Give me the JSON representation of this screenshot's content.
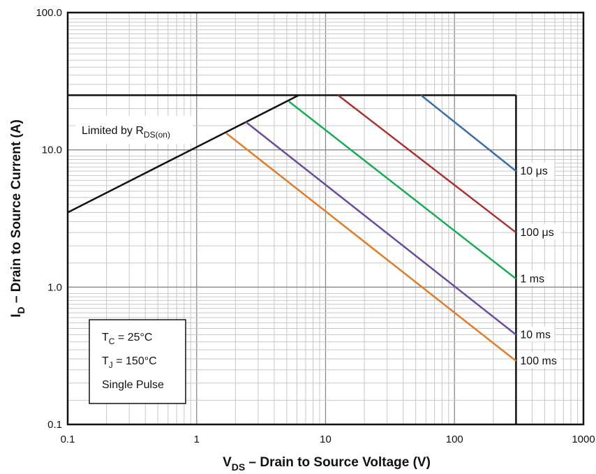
{
  "chart_data": {
    "type": "line",
    "x_scale": "log",
    "y_scale": "log",
    "xlim": [
      0.1,
      1000
    ],
    "ylim": [
      0.1,
      100
    ],
    "x_ticks": [
      "0.1",
      "1",
      "10",
      "100",
      "1000"
    ],
    "y_ticks": [
      "0.1",
      "1.0",
      "10.0",
      "100.0"
    ],
    "xlabel": {
      "main": "V",
      "sub": "DS",
      "rest": " – Drain to Source Voltage (V)"
    },
    "ylabel": {
      "main": "I",
      "sub": "D",
      "rest": " – Drain to Source Current (A)"
    },
    "grid": true,
    "boundary": {
      "current_limit": 25,
      "voltage_limit": 300,
      "rds_on": {
        "label_main": "Limited by R",
        "label_sub": "DS(on)",
        "x": [
          0.1,
          6.2
        ],
        "y": [
          3.5,
          25
        ]
      }
    },
    "series": [
      {
        "name": "10 μs",
        "color": "#3a6ea5",
        "x": [
          55,
          300
        ],
        "y": [
          25,
          7.0
        ]
      },
      {
        "name": "100 μs",
        "color": "#a83232",
        "x": [
          12.5,
          300
        ],
        "y": [
          25,
          2.5
        ]
      },
      {
        "name": "1 ms",
        "color": "#1aaa55",
        "x": [
          5.2,
          300
        ],
        "y": [
          22.5,
          1.15
        ]
      },
      {
        "name": "10 ms",
        "color": "#6b4c9a",
        "x": [
          2.4,
          300
        ],
        "y": [
          16,
          0.45
        ]
      },
      {
        "name": "100 ms",
        "color": "#e07b27",
        "x": [
          1.7,
          300
        ],
        "y": [
          13.2,
          0.29
        ]
      }
    ],
    "conditions": [
      {
        "main": "T",
        "sub": "C",
        "rest": " = 25°C"
      },
      {
        "main": "T",
        "sub": "J",
        "rest": " = 150°C"
      },
      {
        "main": "Single Pulse",
        "sub": "",
        "rest": ""
      }
    ]
  }
}
